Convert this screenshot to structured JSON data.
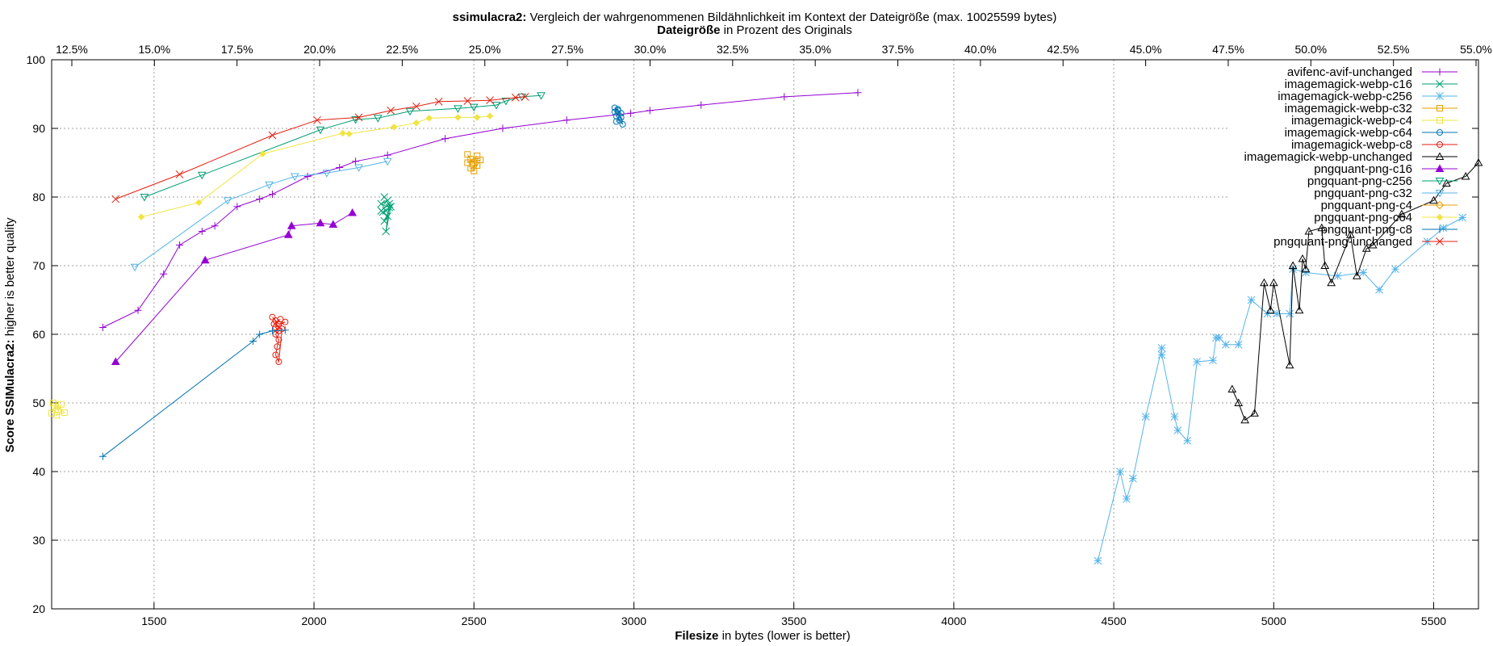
{
  "chart_data": {
    "type": "line",
    "title": {
      "bold": "ssimulacra2:",
      "rest": " Vergleich der wahrgenommenen Bildähnlichkeit im Kontext der Dateigröße (max. 10025599 bytes)"
    },
    "subtitle": {
      "bold": "Dateigröße",
      "rest": " in Prozent des Originals"
    },
    "xlabel": {
      "bold": "Filesize",
      "rest": " in bytes (lower is better)"
    },
    "ylabel": {
      "bold": "Score SSIMulacra2:",
      "rest": " higher is better quality"
    },
    "xlim": [
      1180,
      5640
    ],
    "ylim": [
      20,
      100
    ],
    "x_ticks": [
      "1500",
      "2000",
      "2500",
      "3000",
      "3500",
      "4000",
      "4500",
      "5000",
      "5500"
    ],
    "y_ticks": [
      "20",
      "30",
      "40",
      "50",
      "60",
      "70",
      "80",
      "90",
      "100"
    ],
    "x2_ticks": [
      "12.5%",
      "15.0%",
      "17.5%",
      "20.0%",
      "22.5%",
      "25.0%",
      "27.5%",
      "30.0%",
      "32.5%",
      "35.0%",
      "37.5%",
      "40.0%",
      "42.5%",
      "45.0%",
      "47.5%",
      "50.0%",
      "52.5%",
      "55.0%"
    ],
    "grid": true,
    "legend_position": "top-right",
    "series": [
      {
        "name": "avifenc-avif-unchanged",
        "color": "#9400d3",
        "marker": "plus",
        "style": "line",
        "points": [
          [
            1340,
            61
          ],
          [
            1450,
            63.5
          ],
          [
            1530,
            68.8
          ],
          [
            1580,
            73
          ],
          [
            1650,
            75
          ],
          [
            1690,
            75.8
          ],
          [
            1760,
            78.6
          ],
          [
            1830,
            79.7
          ],
          [
            1870,
            80.4
          ],
          [
            1980,
            83
          ],
          [
            2080,
            84.3
          ],
          [
            2130,
            85.2
          ],
          [
            2230,
            86.1
          ],
          [
            2410,
            88.5
          ],
          [
            2590,
            90
          ],
          [
            2790,
            91.2
          ],
          [
            2990,
            92.2
          ],
          [
            3050,
            92.6
          ],
          [
            3210,
            93.4
          ],
          [
            3470,
            94.6
          ],
          [
            3700,
            95.2
          ]
        ]
      },
      {
        "name": "imagemagick-webp-c16",
        "color": "#009e73",
        "marker": "x",
        "style": "cluster",
        "points": [
          [
            2220,
            80
          ],
          [
            2230,
            79.5
          ],
          [
            2210,
            79
          ],
          [
            2235,
            78.5
          ],
          [
            2225,
            78
          ],
          [
            2215,
            77.8
          ],
          [
            2230,
            77.2
          ],
          [
            2220,
            76.5
          ],
          [
            2240,
            78.6
          ],
          [
            2225,
            75
          ],
          [
            2235,
            79
          ],
          [
            2210,
            78
          ]
        ]
      },
      {
        "name": "imagemagick-webp-c256",
        "color": "#56b4e9",
        "marker": "star",
        "style": "line",
        "points": [
          [
            4450,
            27
          ],
          [
            4520,
            40
          ],
          [
            4540,
            36
          ],
          [
            4560,
            39
          ],
          [
            4600,
            48
          ],
          [
            4650,
            58
          ],
          [
            4650,
            57
          ],
          [
            4690,
            48
          ],
          [
            4700,
            46
          ],
          [
            4730,
            44.5
          ],
          [
            4760,
            56
          ],
          [
            4810,
            56.2
          ],
          [
            4820,
            59.5
          ],
          [
            4830,
            59.5
          ],
          [
            4850,
            58.5
          ],
          [
            4890,
            58.5
          ],
          [
            4930,
            65
          ],
          [
            4980,
            63
          ],
          [
            5010,
            63
          ],
          [
            5050,
            63
          ],
          [
            5060,
            69.5
          ],
          [
            5100,
            69
          ],
          [
            5200,
            68.5
          ],
          [
            5280,
            69
          ],
          [
            5330,
            66.5
          ],
          [
            5380,
            69.5
          ],
          [
            5480,
            73.5
          ],
          [
            5530,
            75.5
          ],
          [
            5590,
            77
          ]
        ]
      },
      {
        "name": "imagemagick-webp-c32",
        "color": "#e69f00",
        "marker": "square",
        "style": "cluster",
        "points": [
          [
            2480,
            86.2
          ],
          [
            2490,
            85.5
          ],
          [
            2500,
            85
          ],
          [
            2510,
            84.6
          ],
          [
            2490,
            84.2
          ],
          [
            2500,
            83.8
          ],
          [
            2520,
            85.4
          ],
          [
            2480,
            85
          ],
          [
            2510,
            86
          ],
          [
            2495,
            84.8
          ]
        ]
      },
      {
        "name": "imagemagick-webp-c4",
        "color": "#f0e442",
        "marker": "square",
        "style": "cluster",
        "points": [
          [
            1180,
            48.5
          ],
          [
            1190,
            49.5
          ],
          [
            1200,
            49
          ],
          [
            1210,
            49.8
          ],
          [
            1195,
            48.2
          ],
          [
            1220,
            48.6
          ],
          [
            1185,
            50
          ]
        ]
      },
      {
        "name": "imagemagick-webp-c64",
        "color": "#0072b2",
        "marker": "circle",
        "style": "cluster",
        "points": [
          [
            2940,
            93
          ],
          [
            2950,
            92.6
          ],
          [
            2960,
            92.2
          ],
          [
            2945,
            91.8
          ],
          [
            2955,
            91.2
          ],
          [
            2965,
            90.6
          ],
          [
            2950,
            92.8
          ],
          [
            2940,
            92.4
          ],
          [
            2960,
            91.6
          ],
          [
            2945,
            91
          ]
        ]
      },
      {
        "name": "imagemagick-webp-c8",
        "color": "#e51e10",
        "marker": "circle",
        "style": "cluster",
        "points": [
          [
            1870,
            62.5
          ],
          [
            1880,
            62
          ],
          [
            1890,
            61.5
          ],
          [
            1910,
            61.8
          ],
          [
            1880,
            61
          ],
          [
            1890,
            60.5
          ],
          [
            1880,
            60
          ],
          [
            1890,
            59.2
          ],
          [
            1885,
            58.2
          ],
          [
            1880,
            57
          ],
          [
            1890,
            56
          ],
          [
            1900,
            60.8
          ],
          [
            1875,
            61.5
          ],
          [
            1895,
            62.2
          ]
        ]
      },
      {
        "name": "imagemagick-webp-unchanged",
        "color": "#000000",
        "marker": "triangle",
        "style": "line",
        "points": [
          [
            4870,
            52
          ],
          [
            4890,
            50
          ],
          [
            4910,
            47.5
          ],
          [
            4940,
            48.5
          ],
          [
            4970,
            67.5
          ],
          [
            4990,
            63.5
          ],
          [
            5000,
            67.5
          ],
          [
            5050,
            55.5
          ],
          [
            5060,
            70
          ],
          [
            5080,
            63.5
          ],
          [
            5090,
            71
          ],
          [
            5100,
            69.5
          ],
          [
            5110,
            75
          ],
          [
            5150,
            75.5
          ],
          [
            5160,
            70
          ],
          [
            5180,
            67.5
          ],
          [
            5240,
            74.5
          ],
          [
            5260,
            68.5
          ],
          [
            5290,
            72.5
          ],
          [
            5310,
            73
          ],
          [
            5400,
            77.5
          ],
          [
            5500,
            79.5
          ],
          [
            5540,
            82
          ],
          [
            5600,
            83
          ],
          [
            5640,
            85
          ]
        ]
      },
      {
        "name": "pngquant-png-c16",
        "color": "#9400d3",
        "marker": "triangle-filled",
        "style": "line",
        "points": [
          [
            1380,
            56
          ],
          [
            1660,
            70.8
          ],
          [
            1920,
            74.5
          ],
          [
            1930,
            75.8
          ],
          [
            2020,
            76.2
          ],
          [
            2060,
            76
          ],
          [
            2120,
            77.7
          ]
        ]
      },
      {
        "name": "pngquant-png-c256",
        "color": "#009e73",
        "marker": "triangle-down",
        "style": "line",
        "points": [
          [
            1470,
            80
          ],
          [
            1650,
            83.2
          ],
          [
            2020,
            89.8
          ],
          [
            2130,
            91.3
          ],
          [
            2200,
            91.5
          ],
          [
            2300,
            92.5
          ],
          [
            2450,
            92.9
          ],
          [
            2500,
            93.1
          ],
          [
            2570,
            93.4
          ],
          [
            2600,
            94
          ],
          [
            2650,
            94.6
          ],
          [
            2710,
            94.8
          ]
        ]
      },
      {
        "name": "pngquant-png-c32",
        "color": "#56b4e9",
        "marker": "triangle-down",
        "style": "line",
        "points": [
          [
            1440,
            69.8
          ],
          [
            1730,
            79.5
          ],
          [
            1860,
            81.8
          ],
          [
            1940,
            83
          ],
          [
            2040,
            83.5
          ],
          [
            2140,
            84.3
          ],
          [
            2230,
            85.2
          ]
        ]
      },
      {
        "name": "pngquant-png-c4",
        "color": "#e69f00",
        "marker": "diamond",
        "style": "line",
        "points": []
      },
      {
        "name": "pngquant-png-c64",
        "color": "#f0e442",
        "marker": "diamond-filled",
        "style": "line",
        "points": [
          [
            1460,
            77.1
          ],
          [
            1640,
            79.2
          ],
          [
            1840,
            86.3
          ],
          [
            2090,
            89.3
          ],
          [
            2110,
            89.2
          ],
          [
            2250,
            90.2
          ],
          [
            2320,
            90.8
          ],
          [
            2360,
            91.5
          ],
          [
            2450,
            91.6
          ],
          [
            2510,
            91.6
          ],
          [
            2550,
            91.8
          ]
        ]
      },
      {
        "name": "pngquant-png-c8",
        "color": "#0072b2",
        "marker": "plus",
        "style": "line",
        "points": [
          [
            1340,
            42.2
          ],
          [
            1810,
            59
          ],
          [
            1830,
            60
          ],
          [
            1870,
            60.5
          ],
          [
            1910,
            60.6
          ]
        ]
      },
      {
        "name": "pngquant-png-unchanged",
        "color": "#e51e10",
        "marker": "x",
        "style": "line",
        "points": [
          [
            1380,
            79.7
          ],
          [
            1580,
            83.3
          ],
          [
            1870,
            89
          ],
          [
            2010,
            91.2
          ],
          [
            2140,
            91.6
          ],
          [
            2240,
            92.6
          ],
          [
            2320,
            93.2
          ],
          [
            2390,
            93.9
          ],
          [
            2480,
            94
          ],
          [
            2550,
            94.1
          ],
          [
            2630,
            94.5
          ],
          [
            2660,
            94.6
          ]
        ]
      }
    ]
  }
}
